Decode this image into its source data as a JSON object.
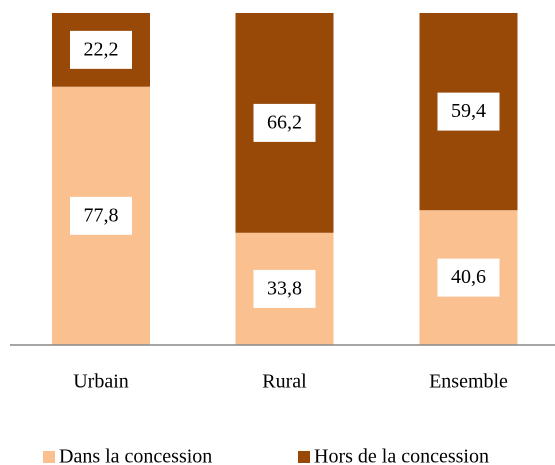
{
  "chart_data": {
    "type": "stacked_bar",
    "categories": [
      "Urbain",
      "Rural",
      "Ensemble"
    ],
    "series": [
      {
        "name": "Dans la concession",
        "color": "#fac090",
        "values": [
          77.8,
          33.8,
          40.6
        ],
        "value_labels": [
          "77,8",
          "33,8",
          "40,6"
        ]
      },
      {
        "name": "Hors de la concession",
        "color": "#984807",
        "values": [
          22.2,
          66.2,
          59.4
        ],
        "value_labels": [
          "22,2",
          "66,2",
          "59,4"
        ]
      }
    ],
    "ylim": [
      0,
      100
    ],
    "legend": "bottom"
  }
}
